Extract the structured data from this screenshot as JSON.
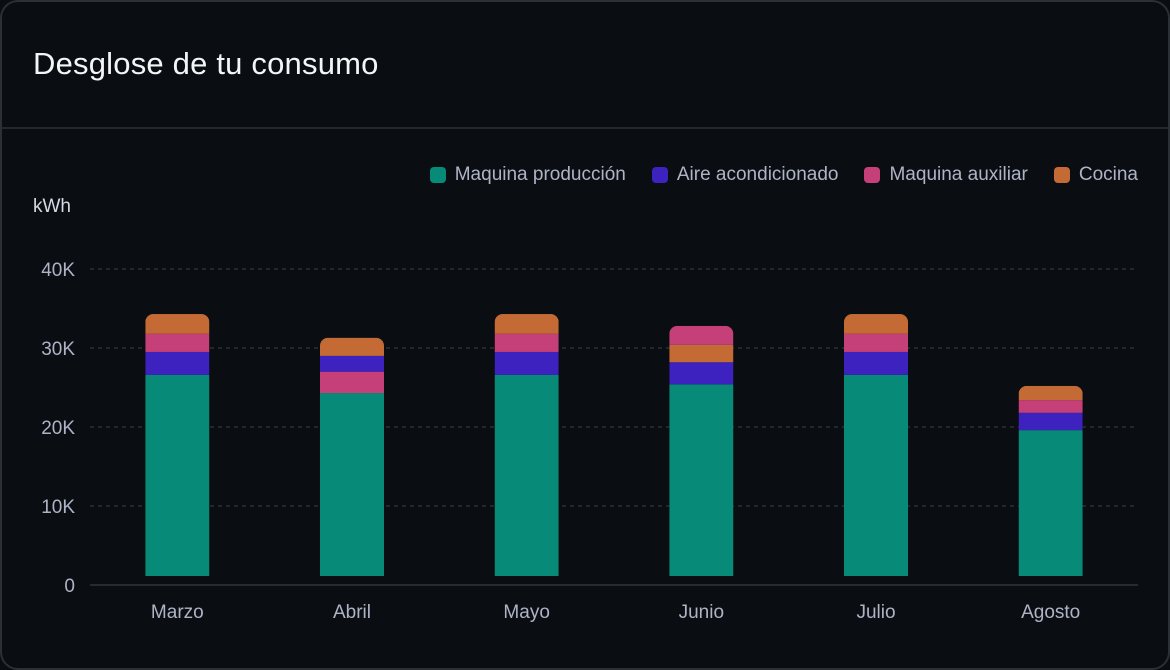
{
  "header": {
    "title": "Desglose de tu consumo"
  },
  "chart_data": {
    "type": "bar",
    "stacked": true,
    "title": "Desglose de tu consumo",
    "ylabel": "kWh",
    "xlabel": "",
    "ylim": [
      0,
      40000
    ],
    "yticks": [
      0,
      10000,
      20000,
      30000,
      40000
    ],
    "ytick_labels": [
      "0",
      "10K",
      "20K",
      "30K",
      "40K"
    ],
    "grid": true,
    "legend_position": "top-right",
    "categories": [
      "Marzo",
      "Abril",
      "Mayo",
      "Junio",
      "Julio",
      "Agosto"
    ],
    "series": [
      {
        "name": "Maquina producción",
        "color": "#078a78",
        "values": [
          26600,
          24300,
          26600,
          25400,
          26600,
          19600
        ]
      },
      {
        "name": "Aire acondicionado",
        "color": "#3d22c0",
        "values": [
          2900,
          2000,
          2900,
          2800,
          2900,
          2200
        ]
      },
      {
        "name": "Maquina auxiliar",
        "color": "#c54078",
        "values": [
          2300,
          2700,
          2300,
          2400,
          2300,
          1600
        ]
      },
      {
        "name": "Cocina",
        "color": "#c46a34",
        "values": [
          2500,
          2300,
          2500,
          2200,
          2500,
          1800
        ]
      }
    ],
    "stack_order": [
      [
        0,
        1,
        2,
        3
      ],
      [
        0,
        2,
        1,
        3
      ],
      [
        0,
        1,
        2,
        3
      ],
      [
        0,
        1,
        3,
        2
      ],
      [
        0,
        1,
        2,
        3
      ],
      [
        0,
        1,
        2,
        3
      ]
    ]
  }
}
